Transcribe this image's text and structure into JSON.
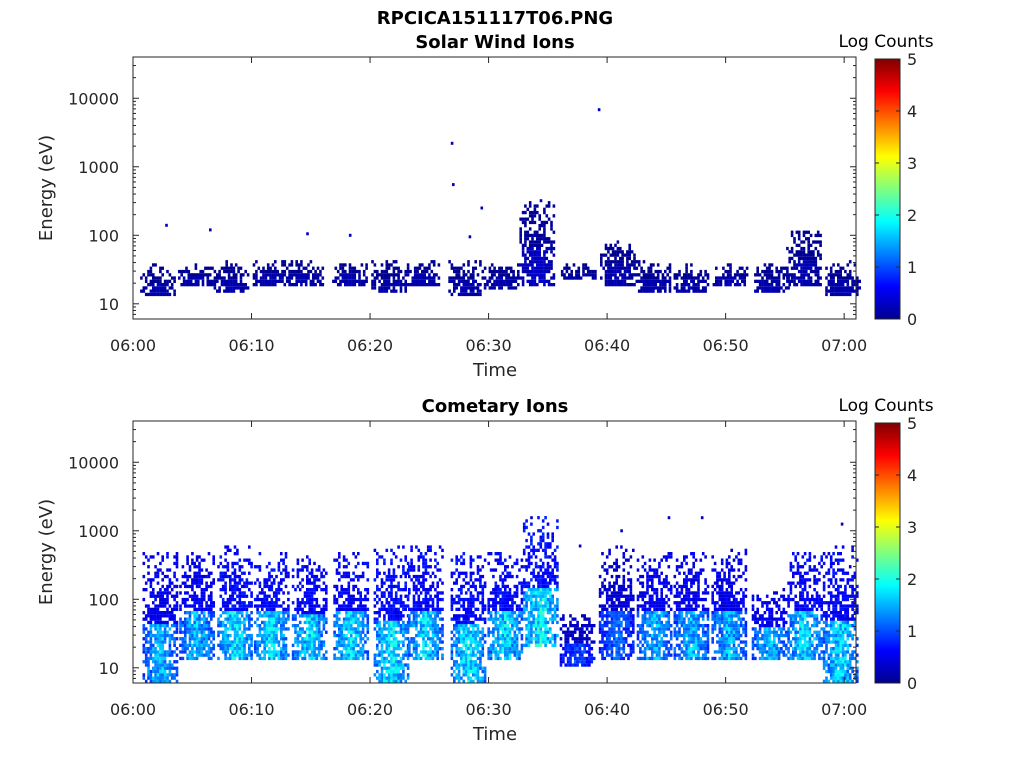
{
  "figure_title": "RPCICA151117T06.PNG",
  "chart_data": [
    {
      "type": "heatmap",
      "title": "Solar Wind Ions",
      "xlabel": "Time",
      "ylabel": "Energy (eV)",
      "xlim": [
        "06:00",
        "07:01"
      ],
      "ylim": [
        6,
        40000
      ],
      "yscale": "log",
      "xticks": [
        "06:00",
        "06:10",
        "06:20",
        "06:30",
        "06:40",
        "06:50",
        "07:00"
      ],
      "yticks": [
        "10",
        "100",
        "1000",
        "10000"
      ],
      "colorbar": {
        "label": "Log Counts",
        "min": 0,
        "max": 5,
        "ticks": [
          "0",
          "1",
          "2",
          "3",
          "4",
          "5"
        ],
        "colormap": "jet"
      },
      "bursts": [
        {
          "t": 2.0,
          "level": 0.25,
          "emin": 12,
          "emax": 35
        },
        {
          "t": 5.2,
          "level": 0.25,
          "emin": 18,
          "emax": 35
        },
        {
          "t": 8.2,
          "level": 0.25,
          "emin": 14,
          "emax": 40
        },
        {
          "t": 11.5,
          "level": 0.25,
          "emin": 18,
          "emax": 40
        },
        {
          "t": 14.5,
          "level": 0.25,
          "emin": 18,
          "emax": 40
        },
        {
          "t": 18.2,
          "level": 0.25,
          "emin": 18,
          "emax": 38
        },
        {
          "t": 21.5,
          "level": 0.25,
          "emin": 14,
          "emax": 40
        },
        {
          "t": 24.3,
          "level": 0.25,
          "emin": 18,
          "emax": 40
        },
        {
          "t": 28.0,
          "level": 0.25,
          "emin": 12,
          "emax": 40
        },
        {
          "t": 31.0,
          "level": 0.25,
          "emin": 15,
          "emax": 38
        },
        {
          "t": 34.0,
          "level": 0.35,
          "emin": 18,
          "emax": 300
        },
        {
          "t": 37.5,
          "level": 0.2,
          "emin": 22,
          "emax": 35
        },
        {
          "t": 40.8,
          "level": 0.25,
          "emin": 18,
          "emax": 80
        },
        {
          "t": 43.8,
          "level": 0.25,
          "emin": 14,
          "emax": 40
        },
        {
          "t": 47.0,
          "level": 0.25,
          "emin": 14,
          "emax": 35
        },
        {
          "t": 50.3,
          "level": 0.25,
          "emin": 18,
          "emax": 35
        },
        {
          "t": 53.8,
          "level": 0.25,
          "emin": 14,
          "emax": 35
        },
        {
          "t": 56.5,
          "level": 0.25,
          "emin": 18,
          "emax": 110
        },
        {
          "t": 59.8,
          "level": 0.25,
          "emin": 12,
          "emax": 40
        }
      ],
      "scatter_points": [
        {
          "t": 26.9,
          "e": 2200
        },
        {
          "t": 27.0,
          "e": 550
        },
        {
          "t": 29.4,
          "e": 250
        },
        {
          "t": 39.3,
          "e": 6800
        },
        {
          "t": 34.4,
          "e": 320
        },
        {
          "t": 28.4,
          "e": 95
        },
        {
          "t": 6.5,
          "e": 120
        },
        {
          "t": 2.8,
          "e": 140
        },
        {
          "t": 14.7,
          "e": 105
        },
        {
          "t": 18.3,
          "e": 100
        }
      ]
    },
    {
      "type": "heatmap",
      "title": "Cometary Ions",
      "xlabel": "Time",
      "ylabel": "Energy (eV)",
      "xlim": [
        "06:00",
        "07:01"
      ],
      "ylim": [
        6,
        40000
      ],
      "yscale": "log",
      "xticks": [
        "06:00",
        "06:10",
        "06:20",
        "06:30",
        "06:40",
        "06:50",
        "07:00"
      ],
      "yticks": [
        "10",
        "100",
        "1000",
        "10000"
      ],
      "colorbar": {
        "label": "Log Counts",
        "min": 0,
        "max": 5,
        "ticks": [
          "0",
          "1",
          "2",
          "3",
          "4",
          "5"
        ],
        "colormap": "jet"
      },
      "bursts": [
        {
          "t": 2.2,
          "level": 1.6,
          "emin": 6,
          "emax": 450
        },
        {
          "t": 5.3,
          "level": 1.6,
          "emin": 12,
          "emax": 450
        },
        {
          "t": 8.5,
          "level": 1.9,
          "emin": 12,
          "emax": 550
        },
        {
          "t": 11.6,
          "level": 1.8,
          "emin": 12,
          "emax": 450
        },
        {
          "t": 14.8,
          "level": 1.8,
          "emin": 12,
          "emax": 420
        },
        {
          "t": 18.3,
          "level": 1.8,
          "emin": 12,
          "emax": 480
        },
        {
          "t": 21.7,
          "level": 1.9,
          "emin": 6,
          "emax": 600
        },
        {
          "t": 24.6,
          "level": 1.8,
          "emin": 12,
          "emax": 550
        },
        {
          "t": 28.2,
          "level": 1.9,
          "emin": 6,
          "emax": 450
        },
        {
          "t": 31.3,
          "level": 1.8,
          "emin": 12,
          "emax": 450
        },
        {
          "t": 34.3,
          "level": 2.0,
          "emin": 20,
          "emax": 1500
        },
        {
          "t": 37.4,
          "level": 1.0,
          "emin": 10,
          "emax": 60
        },
        {
          "t": 40.7,
          "level": 1.2,
          "emin": 12,
          "emax": 550
        },
        {
          "t": 43.9,
          "level": 1.6,
          "emin": 12,
          "emax": 450
        },
        {
          "t": 47.0,
          "level": 1.6,
          "emin": 12,
          "emax": 450
        },
        {
          "t": 50.2,
          "level": 1.6,
          "emin": 12,
          "emax": 500
        },
        {
          "t": 53.6,
          "level": 1.6,
          "emin": 12,
          "emax": 140
        },
        {
          "t": 56.6,
          "level": 1.8,
          "emin": 12,
          "emax": 450
        },
        {
          "t": 59.6,
          "level": 1.8,
          "emin": 6,
          "emax": 550
        }
      ],
      "scatter_points": [
        {
          "t": 33.6,
          "e": 1550
        },
        {
          "t": 45.2,
          "e": 1550
        },
        {
          "t": 48.0,
          "e": 1550
        },
        {
          "t": 41.2,
          "e": 1000
        },
        {
          "t": 59.8,
          "e": 1250
        },
        {
          "t": 37.7,
          "e": 600
        }
      ]
    }
  ]
}
